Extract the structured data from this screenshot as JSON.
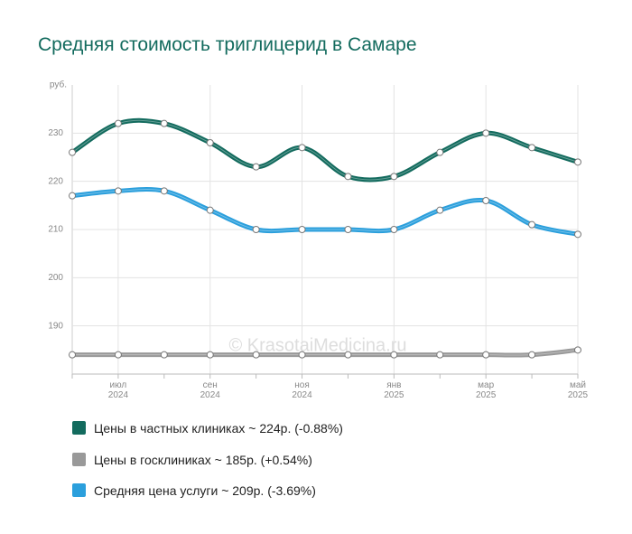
{
  "chart_data": {
    "type": "line",
    "title": "Средняя стоимость триглицерид в Самаре",
    "y_label": "руб.",
    "watermark": "© KrasotaiMedicina.ru",
    "categories": [
      null,
      "июл 2024",
      null,
      "сен 2024",
      null,
      "ноя 2024",
      null,
      "янв 2025",
      null,
      "мар 2025",
      null,
      "май 2025"
    ],
    "series": [
      {
        "name": "Цены в частных клиниках ~ 224р. (-0.88%)",
        "color": "#136b5e",
        "values": [
          226,
          232,
          232,
          228,
          223,
          227,
          221,
          221,
          226,
          230,
          227,
          224
        ]
      },
      {
        "name": "Цены в госклиниках ~ 185р. (+0.54%)",
        "color": "#999999",
        "values": [
          184,
          184,
          184,
          184,
          184,
          184,
          184,
          184,
          184,
          184,
          184,
          185
        ]
      },
      {
        "name": "Средняя цена услуги ~ 209р. (-3.69%)",
        "color": "#2b9fdc",
        "values": [
          217,
          218,
          218,
          214,
          210,
          210,
          210,
          210,
          214,
          216,
          211,
          209
        ]
      }
    ],
    "ylim": [
      180,
      240
    ],
    "yticks": [
      190,
      200,
      210,
      220,
      230
    ],
    "grid": true
  }
}
